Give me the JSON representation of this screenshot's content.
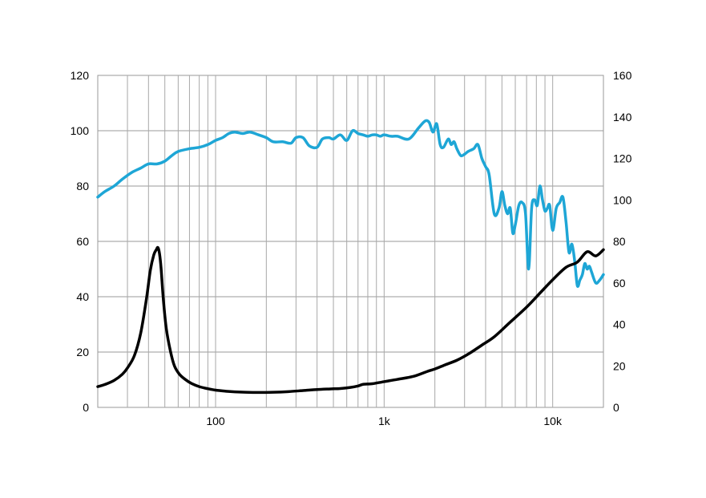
{
  "chart_data": {
    "type": "line",
    "title": "",
    "xlabel": "",
    "ylabel": "",
    "y2label": "",
    "x_scale": "log",
    "xlim": [
      20,
      20000
    ],
    "ylim": [
      0,
      120
    ],
    "y2lim": [
      0,
      160
    ],
    "grid": true,
    "legend": "none",
    "x_tick_values": [
      100,
      1000,
      10000
    ],
    "x_tick_labels": [
      "100",
      "1k",
      "10k"
    ],
    "y_ticks": [
      "0",
      "20",
      "40",
      "60",
      "80",
      "100",
      "120"
    ],
    "y2_ticks": [
      "0",
      "20",
      "40",
      "60",
      "80",
      "100",
      "120",
      "140",
      "160"
    ],
    "series": [
      {
        "axis": "left",
        "color": "#1EA6D6",
        "x": [
          20,
          22,
          25,
          28,
          32,
          36,
          40,
          45,
          50,
          55,
          60,
          70,
          80,
          90,
          100,
          110,
          120,
          130,
          145,
          160,
          180,
          200,
          220,
          250,
          280,
          300,
          330,
          360,
          400,
          430,
          470,
          500,
          550,
          600,
          650,
          700,
          750,
          800,
          850,
          900,
          950,
          1000,
          1100,
          1200,
          1400,
          1600,
          1750,
          1850,
          1950,
          2050,
          2150,
          2250,
          2400,
          2500,
          2600,
          2700,
          2850,
          3000,
          3150,
          3400,
          3600,
          3800,
          4000,
          4200,
          4500,
          4800,
          5000,
          5200,
          5400,
          5600,
          5800,
          6000,
          6300,
          6600,
          6900,
          7200,
          7500,
          7800,
          8100,
          8400,
          8700,
          9000,
          9300,
          9600,
          10000,
          10500,
          11000,
          11500,
          12000,
          12500,
          13000,
          13500,
          14000,
          14500,
          15000,
          15500,
          16000,
          16500,
          17000,
          18000,
          19000,
          20000
        ],
        "values": [
          76,
          78,
          80,
          82.5,
          85,
          86.5,
          88,
          88,
          89,
          91,
          92.5,
          93.5,
          94,
          95,
          96.5,
          97.5,
          99,
          99.5,
          99,
          99.5,
          98.5,
          97.5,
          96,
          96,
          95.5,
          97.5,
          97.5,
          94.5,
          94,
          97,
          97.5,
          97,
          98.5,
          96.5,
          100,
          99,
          98.5,
          98,
          98.5,
          98.5,
          98,
          98.5,
          98,
          98,
          97,
          101,
          103.5,
          103,
          99.5,
          102.5,
          95,
          94,
          97,
          95,
          96,
          93.5,
          91,
          91.5,
          92.5,
          93.5,
          95,
          90,
          87,
          84,
          70,
          72,
          78,
          73,
          70,
          72,
          63,
          66,
          73,
          74,
          70,
          50,
          72,
          75,
          73,
          80,
          75,
          71,
          72,
          73,
          64,
          72,
          74,
          76,
          67,
          56,
          59,
          53,
          44,
          46,
          48,
          52,
          50,
          51,
          49,
          45,
          46,
          48
        ]
      },
      {
        "axis": "right",
        "color": "#000000",
        "x": [
          20,
          22,
          25,
          28,
          30,
          33,
          36,
          39,
          41,
          43,
          44.5,
          45.5,
          46.5,
          47.5,
          49,
          51,
          54,
          57,
          61,
          66,
          72,
          80,
          90,
          100,
          115,
          130,
          150,
          180,
          220,
          270,
          330,
          400,
          480,
          550,
          630,
          700,
          750,
          850,
          1000,
          1200,
          1500,
          1800,
          2000,
          2300,
          2700,
          3200,
          3800,
          4500,
          5500,
          7000,
          8500,
          10000,
          12000,
          14000,
          16000,
          18000,
          20000
        ],
        "values": [
          10,
          11,
          13,
          16,
          19,
          25,
          36,
          53,
          66,
          73.5,
          76,
          77,
          74,
          67,
          52,
          38,
          27,
          20,
          16,
          13.5,
          11.5,
          10,
          9,
          8.3,
          7.8,
          7.5,
          7.3,
          7.2,
          7.3,
          7.6,
          8.1,
          8.6,
          8.9,
          9.1,
          9.6,
          10.3,
          11.1,
          11.4,
          12.4,
          13.5,
          15,
          17.3,
          18.5,
          20.5,
          22.7,
          26,
          30,
          34,
          40.5,
          48.3,
          55.5,
          61.5,
          67.5,
          70,
          75,
          73,
          76
        ]
      }
    ]
  }
}
